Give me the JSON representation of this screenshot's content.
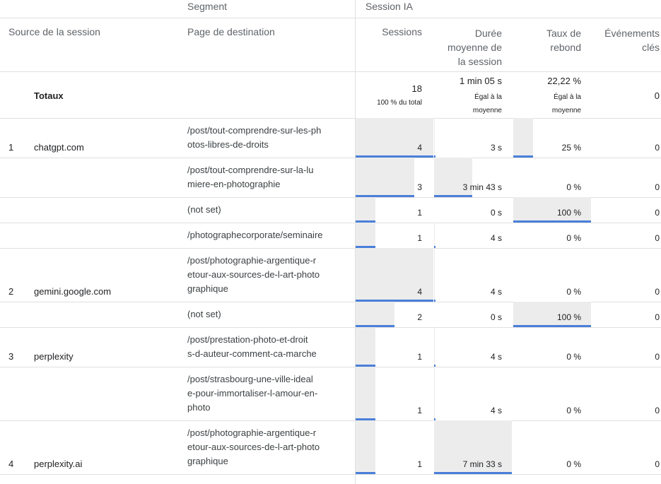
{
  "header": {
    "segment_label": "Segment",
    "segment_value": "Session IA",
    "col_source": "Source de la session",
    "col_page": "Page de destination",
    "col_sessions": "Sessions",
    "col_duration": [
      "Durée",
      "moyenne de",
      "la session"
    ],
    "col_bounce": [
      "Taux de",
      "rebond"
    ],
    "col_events": [
      "Événements",
      "clés"
    ]
  },
  "totals": {
    "label": "Totaux",
    "sessions": "18",
    "sessions_sub": "100 % du total",
    "duration": "1 min 05 s",
    "duration_sub": [
      "Égal à la",
      "moyenne"
    ],
    "bounce": "22,22 %",
    "bounce_sub": [
      "Égal à la",
      "moyenne"
    ],
    "events": "0"
  },
  "rows": [
    {
      "index": "1",
      "source": "chatgpt.com",
      "page": [
        "/post/tout-comprendre-sur-les-ph",
        "otos-libres-de-droits"
      ],
      "sessions": "4",
      "duration": "3 s",
      "bounce": "25 %",
      "events": "0"
    },
    {
      "index": "",
      "source": "",
      "page": [
        "/post/tout-comprendre-sur-la-lu",
        "miere-en-photographie"
      ],
      "sessions": "3",
      "duration": "3 min 43 s",
      "bounce": "0 %",
      "events": "0"
    },
    {
      "index": "",
      "source": "",
      "page": [
        "(not set)"
      ],
      "sessions": "1",
      "duration": "0 s",
      "bounce": "100 %",
      "events": "0"
    },
    {
      "index": "",
      "source": "",
      "page": [
        "/photographecorporate/seminaire"
      ],
      "sessions": "1",
      "duration": "4 s",
      "bounce": "0 %",
      "events": "0"
    },
    {
      "index": "2",
      "source": "gemini.google.com",
      "page": [
        "/post/photographie-argentique-r",
        "etour-aux-sources-de-l-art-photo",
        "graphique"
      ],
      "sessions": "4",
      "duration": "4 s",
      "bounce": "0 %",
      "events": "0"
    },
    {
      "index": "",
      "source": "",
      "page": [
        "(not set)"
      ],
      "sessions": "2",
      "duration": "0 s",
      "bounce": "100 %",
      "events": "0"
    },
    {
      "index": "3",
      "source": "perplexity",
      "page": [
        "/post/prestation-photo-et-droit",
        "s-d-auteur-comment-ca-marche"
      ],
      "sessions": "1",
      "duration": "4 s",
      "bounce": "0 %",
      "events": "0"
    },
    {
      "index": "",
      "source": "",
      "page": [
        "/post/strasbourg-une-ville-ideal",
        "e-pour-immortaliser-l-amour-en-",
        "photo"
      ],
      "sessions": "1",
      "duration": "4 s",
      "bounce": "0 %",
      "events": "0"
    },
    {
      "index": "4",
      "source": "perplexity.ai",
      "page": [
        "/post/photographie-argentique-r",
        "etour-aux-sources-de-l-art-photo",
        "graphique"
      ],
      "sessions": "1",
      "duration": "7 min 33 s",
      "bounce": "0 %",
      "events": "0"
    }
  ],
  "bars": {
    "sessions_fraction": [
      1.0,
      0.75,
      0.25,
      0.25,
      1.0,
      0.5,
      0.25,
      0.25,
      0.25
    ],
    "duration_fraction": [
      0.0066,
      0.4923,
      0.0,
      0.0088,
      0.0088,
      0.0,
      0.0088,
      0.0088,
      1.0
    ],
    "bounce_fraction": [
      0.25,
      0.0,
      1.0,
      0.0,
      0.0,
      1.0,
      0.0,
      0.0,
      0.0
    ],
    "accent_color": "#4a7fd9",
    "fill_color": "#ececec"
  }
}
